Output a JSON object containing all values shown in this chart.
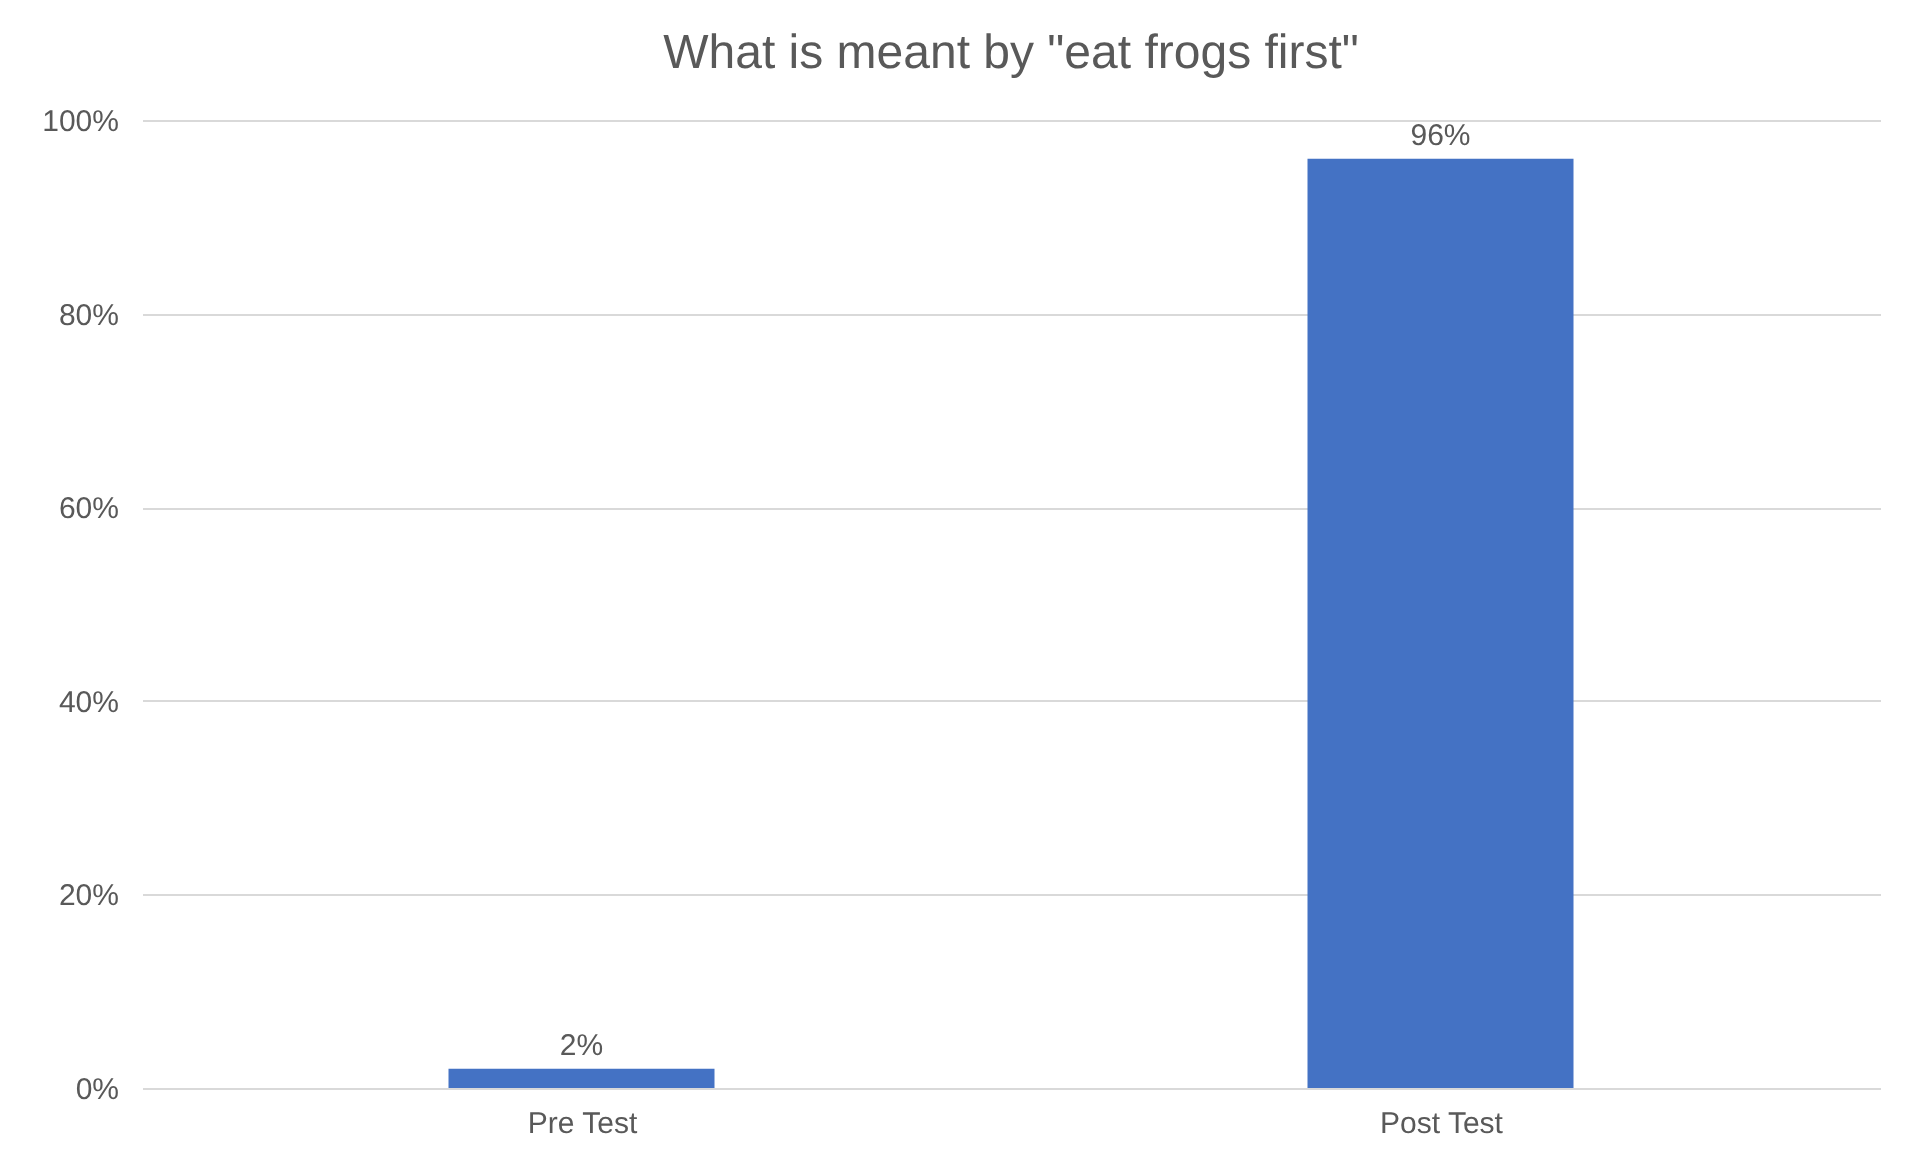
{
  "chart_data": {
    "type": "bar",
    "title": "What is meant by \"eat frogs first\"",
    "categories": [
      "Pre Test",
      "Post Test"
    ],
    "values": [
      2,
      96
    ],
    "color": "#4472c4",
    "value_labels": [
      "2%",
      "96%"
    ],
    "ylim": [
      0,
      100
    ],
    "yticks": [
      {
        "value": 0,
        "label": "0%"
      },
      {
        "value": 20,
        "label": "20%"
      },
      {
        "value": 40,
        "label": "40%"
      },
      {
        "value": 60,
        "label": "60%"
      },
      {
        "value": 80,
        "label": "80%"
      },
      {
        "value": 100,
        "label": "100%"
      }
    ],
    "grid": "y"
  }
}
